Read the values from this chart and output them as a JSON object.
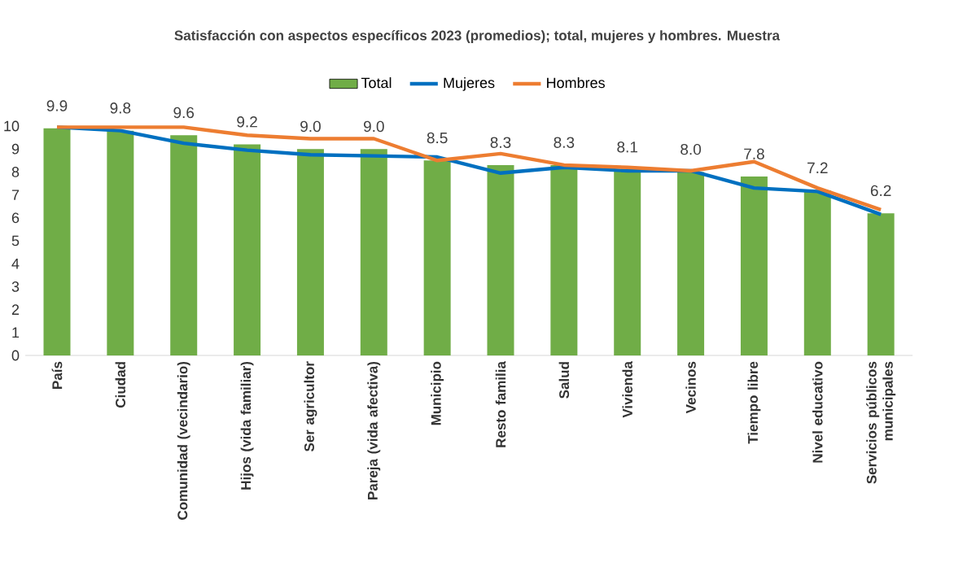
{
  "chart_data": {
    "type": "bar",
    "title": "Satisfacción con aspectos específicos 2023 (promedios); total, mujeres y hombres. Muestra",
    "categories": [
      "País",
      "Ciudad",
      "Comunidad (vecindario)",
      "Hijos (vida familiar)",
      "Ser agricultor",
      "Pareja (vida afectiva)",
      "Municipio",
      "Resto familia",
      "Salud",
      "Vivienda",
      "Vecinos",
      "Tiempo libre",
      "Nivel educativo",
      "Servicios públicos municipales"
    ],
    "series": [
      {
        "name": "Total",
        "color": "#70ad47",
        "values": [
          9.9,
          9.8,
          9.6,
          9.2,
          9.0,
          9.0,
          8.5,
          8.3,
          8.3,
          8.1,
          8.0,
          7.8,
          7.2,
          6.2
        ],
        "value_labels": [
          "9.9",
          "9.8",
          "9.6",
          "9.2",
          "9.0",
          "9.0",
          "8.5",
          "8.3",
          "8.3",
          "8.1",
          "8.0",
          "7.8",
          "7.2",
          "6.2"
        ]
      },
      {
        "name": "Mujeres",
        "type": "line",
        "color": "#0070c0",
        "values": [
          9.95,
          9.8,
          9.25,
          8.95,
          8.75,
          8.7,
          8.65,
          7.95,
          8.2,
          8.05,
          8.05,
          7.3,
          7.15,
          6.15
        ]
      },
      {
        "name": "Hombres",
        "type": "line",
        "color": "#ed7d31",
        "values": [
          9.95,
          9.95,
          9.95,
          9.6,
          9.45,
          9.45,
          8.5,
          8.8,
          8.3,
          8.2,
          8.05,
          8.45,
          7.3,
          6.35
        ]
      }
    ],
    "ylim": [
      0,
      10
    ],
    "yticks": [
      0,
      1,
      2,
      3,
      4,
      5,
      6,
      7,
      8,
      9,
      10
    ],
    "legend": "top",
    "marker": "none",
    "line_style": "solid"
  }
}
